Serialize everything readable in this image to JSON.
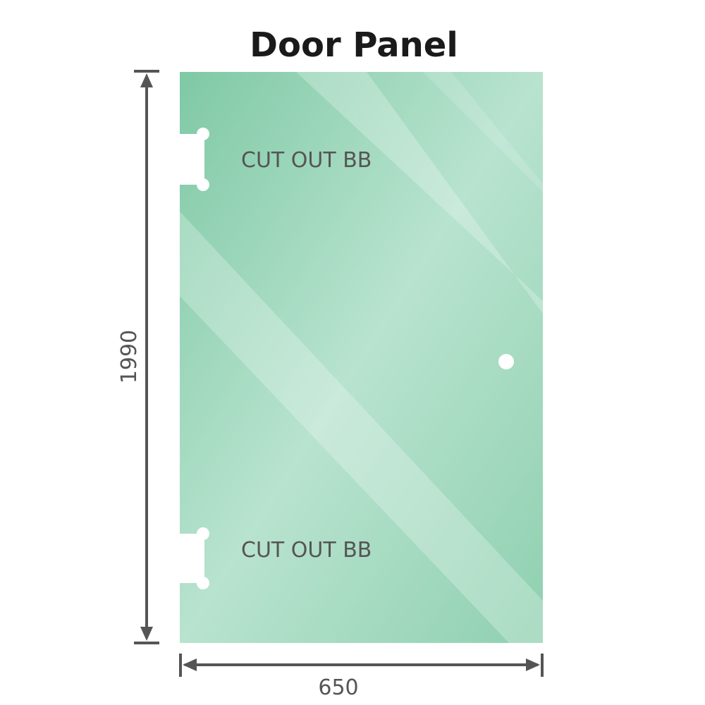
{
  "title": "Door Panel",
  "cutouts": [
    {
      "label": "CUT OUT BB"
    },
    {
      "label": "CUT OUT BB"
    }
  ],
  "dimensions": {
    "height": "1990",
    "width": "650"
  },
  "colors": {
    "glass": "#8fd0b0",
    "glass_light": "#bde6d3",
    "dimension_line": "#555555",
    "title": "#1a1a1a"
  }
}
